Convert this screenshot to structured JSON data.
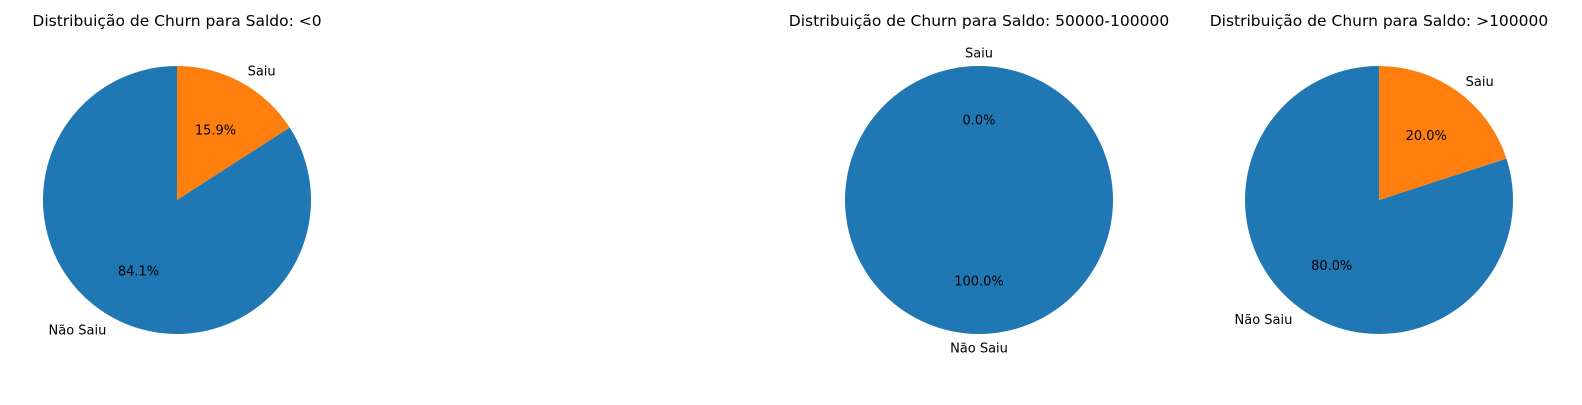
{
  "chart_data": [
    {
      "type": "pie",
      "title": "Distribuição de Churn para Saldo: <0",
      "labels": [
        "Não Saiu",
        "Saiu"
      ],
      "values": [
        84.1,
        15.9
      ],
      "value_labels": [
        "84.1%",
        "15.9%"
      ],
      "colors": [
        "#1f77b4",
        "#ff7f0e"
      ],
      "start_angle_deg": 90
    },
    {
      "type": "pie",
      "title": "Distribuição de Churn para Saldo: 50000-100000",
      "labels": [
        "Não Saiu",
        "Saiu"
      ],
      "values": [
        100.0,
        0.0
      ],
      "value_labels": [
        "100.0%",
        "0.0%"
      ],
      "colors": [
        "#1f77b4",
        "#ff7f0e"
      ],
      "start_angle_deg": 90
    },
    {
      "type": "pie",
      "title": "Distribuição de Churn para Saldo: >100000",
      "labels": [
        "Não Saiu",
        "Saiu"
      ],
      "values": [
        80.0,
        20.0
      ],
      "value_labels": [
        "80.0%",
        "20.0%"
      ],
      "colors": [
        "#1f77b4",
        "#ff7f0e"
      ],
      "start_angle_deg": 90
    }
  ]
}
